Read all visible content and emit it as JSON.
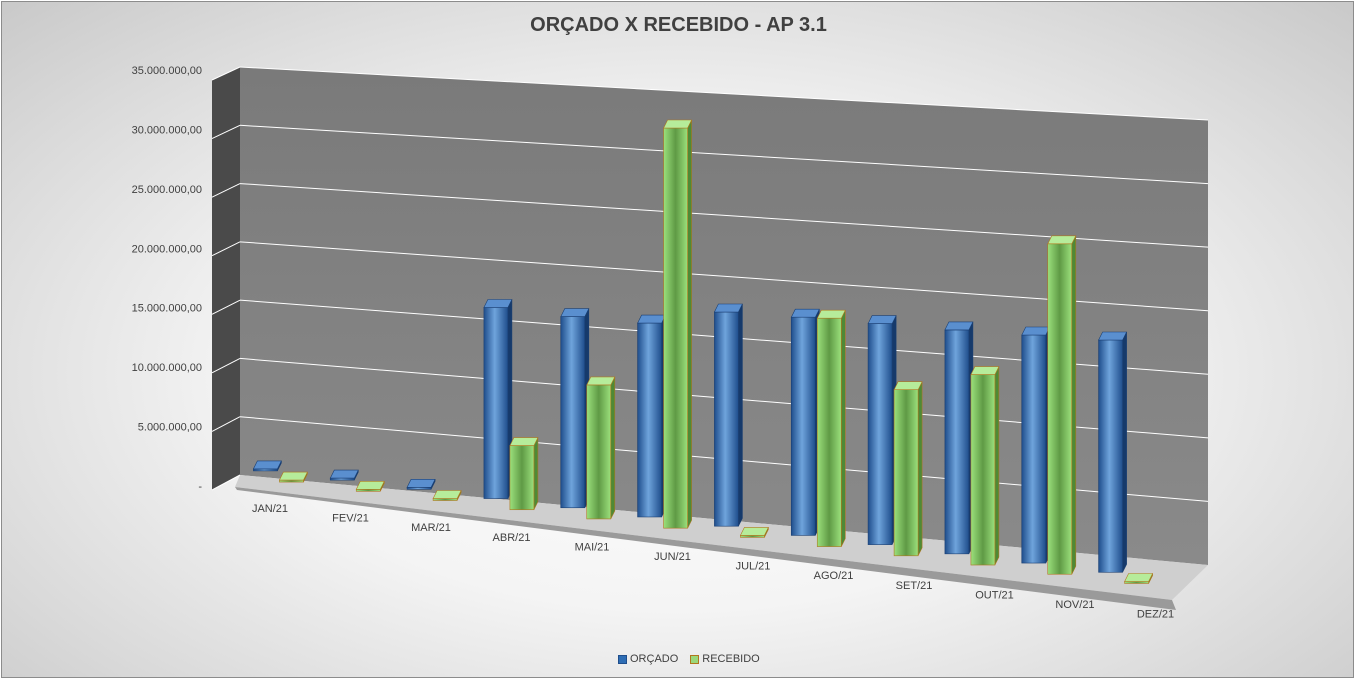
{
  "chart_data": {
    "type": "bar",
    "title": "ORÇADO X RECEBIDO - AP 3.1",
    "xlabel": "",
    "ylabel": "",
    "categories": [
      "JAN/21",
      "FEV/21",
      "MAR/21",
      "ABR/21",
      "MAI/21",
      "JUN/21",
      "JUL/21",
      "AGO/21",
      "SET/21",
      "OUT/21",
      "NOV/21",
      "DEZ/21"
    ],
    "series": [
      {
        "name": "ORÇADO",
        "color": "#2e6db4",
        "values": [
          0,
          0,
          0,
          15500000,
          15400000,
          15500000,
          17000000,
          17200000,
          17300000,
          17400000,
          17600000,
          17800000
        ]
      },
      {
        "name": "RECEBIDO",
        "color": "#9ad87a",
        "values": [
          0,
          0,
          0,
          5200000,
          10800000,
          32000000,
          0,
          18000000,
          13000000,
          14800000,
          25500000,
          0
        ]
      }
    ],
    "y_ticks": [
      "-",
      "5.000.000,00",
      "10.000.000,00",
      "15.000.000,00",
      "20.000.000,00",
      "25.000.000,00",
      "30.000.000,00",
      "35.000.000,00"
    ],
    "ylim": [
      0,
      35000000
    ],
    "grid": true,
    "legend_position": "bottom",
    "style": "3d-perspective-columns"
  }
}
